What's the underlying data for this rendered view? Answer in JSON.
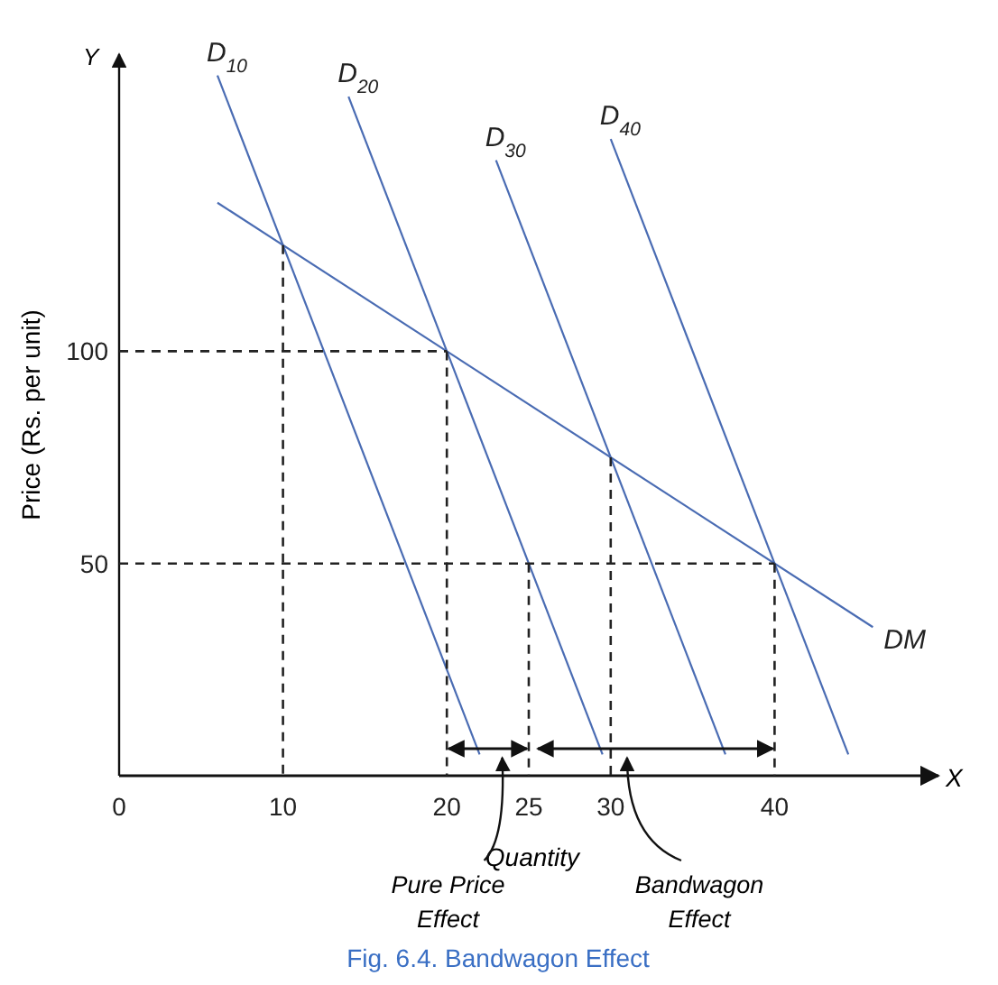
{
  "chart_data": {
    "type": "line",
    "title": "Fig. 6.4. Bandwagon Effect",
    "xlabel": "Quantity",
    "ylabel": "Price (Rs. per unit)",
    "xlim": [
      0,
      50
    ],
    "ylim": [
      0,
      170
    ],
    "xticks": [
      0,
      10,
      20,
      25,
      30,
      40
    ],
    "yticks": [
      50,
      100
    ],
    "grid": false,
    "marker": "none",
    "series": [
      {
        "name": "D$_{10}$",
        "color": "#4a6cb3",
        "x": [
          6,
          22
        ],
        "values": [
          165,
          5
        ]
      },
      {
        "name": "D$_{20}$",
        "color": "#4a6cb3",
        "x": [
          14,
          29.5
        ],
        "values": [
          160,
          5
        ]
      },
      {
        "name": "D$_{30}$",
        "color": "#4a6cb3",
        "x": [
          23,
          37
        ],
        "values": [
          145,
          5
        ]
      },
      {
        "name": "D$_{40}$",
        "color": "#4a6cb3",
        "x": [
          30,
          44.5
        ],
        "values": [
          150,
          5
        ]
      },
      {
        "name": "DM",
        "color": "#4a6cb3",
        "x": [
          6,
          46
        ],
        "values": [
          135,
          35
        ]
      },
      {
        "type": "line",
        "line_style": "dashed",
        "color": "#222222",
        "x": [
          10,
          10
        ],
        "values": [
          125,
          0
        ]
      },
      {
        "type": "line",
        "line_style": "dashed",
        "color": "#222222",
        "x": [
          0,
          20
        ],
        "values": [
          100,
          100
        ]
      },
      {
        "type": "line",
        "line_style": "dashed",
        "color": "#222222",
        "x": [
          20,
          20
        ],
        "values": [
          100,
          0
        ]
      },
      {
        "type": "line",
        "line_style": "dashed",
        "color": "#222222",
        "x": [
          25,
          25
        ],
        "values": [
          50,
          0
        ]
      },
      {
        "type": "line",
        "line_style": "dashed",
        "color": "#222222",
        "x": [
          30,
          30
        ],
        "values": [
          75,
          0
        ]
      },
      {
        "type": "line",
        "line_style": "dashed",
        "color": "#222222",
        "x": [
          0,
          40
        ],
        "values": [
          50,
          50
        ]
      },
      {
        "type": "line",
        "line_style": "dashed",
        "color": "#222222",
        "x": [
          40,
          40
        ],
        "values": [
          50,
          0
        ]
      }
    ],
    "annotations": [
      "X",
      "Y",
      "Pure Price Effect",
      "Bandwagon Effect"
    ]
  }
}
